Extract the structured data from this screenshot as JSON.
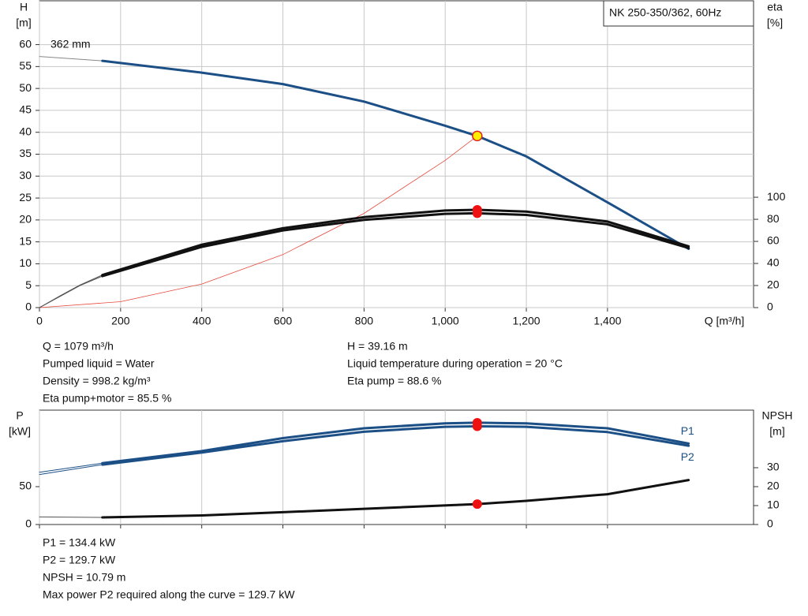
{
  "title": "NK 250-350/362, 60Hz",
  "chart_data": [
    {
      "type": "line",
      "ylabel": "H",
      "yunit": "[m]",
      "y2label": "eta",
      "y2unit": "[%]",
      "xlabel": "Q [m³/h]",
      "xlim": [
        0,
        1760
      ],
      "ylim": [
        0,
        70
      ],
      "y2lim": [
        0,
        278
      ],
      "xticks": [
        0,
        200,
        400,
        600,
        800,
        {
          "value": 1000,
          "label": "1,000"
        },
        {
          "value": 1200,
          "label": "1,200"
        },
        {
          "value": 1400,
          "label": "1,400"
        }
      ],
      "yticks": [
        0,
        5,
        10,
        15,
        20,
        25,
        30,
        35,
        40,
        45,
        50,
        55,
        60
      ],
      "y2ticks": [
        0,
        20,
        40,
        60,
        80,
        100
      ],
      "grid": true,
      "series": [
        {
          "name": "362 mm",
          "color": "#888888",
          "width": 1,
          "x": [
            0,
            155
          ],
          "values": [
            57.3,
            56.3
          ]
        },
        {
          "color": "#1b4f86",
          "width": 3,
          "x": [
            155,
            400,
            600,
            800,
            1000,
            1079,
            1200,
            1400,
            1600
          ],
          "values": [
            56.3,
            53.6,
            51,
            47,
            41.5,
            39.16,
            34.5,
            24,
            13.4
          ]
        },
        {
          "color": "#e8493c",
          "width": 0.8,
          "x": [
            0,
            200,
            400,
            600,
            800,
            1000,
            1079
          ],
          "values": [
            0,
            1.35,
            5.38,
            12.1,
            21.5,
            33.6,
            39.16
          ]
        },
        {
          "color": "#555555",
          "width": 1,
          "axis": "y2",
          "x": [
            0,
            50,
            100,
            155
          ],
          "values": [
            0,
            10.5,
            20.5,
            29.5
          ]
        },
        {
          "color": "#555555",
          "width": 1,
          "axis": "y2",
          "x": [
            0,
            50,
            100,
            155
          ],
          "values": [
            0,
            10,
            20,
            28.5
          ]
        },
        {
          "color": "#111111",
          "width": 3,
          "axis": "y2",
          "x": [
            155,
            400,
            600,
            800,
            1000,
            1079,
            1200,
            1400,
            1600
          ],
          "values": [
            29.5,
            57,
            72,
            82,
            88,
            88.6,
            87,
            78,
            55.5
          ]
        },
        {
          "color": "#111111",
          "width": 3,
          "axis": "y2",
          "x": [
            155,
            400,
            600,
            800,
            1000,
            1079,
            1200,
            1400,
            1600
          ],
          "values": [
            28.5,
            55,
            70,
            79.5,
            85,
            85.5,
            84,
            75.5,
            54
          ]
        }
      ],
      "points": [
        {
          "x": 1079,
          "y": 39.16,
          "color": "#ffee00"
        },
        {
          "x": 1079,
          "y": 88.6,
          "color": "#ee1111",
          "axis": "y2"
        },
        {
          "x": 1079,
          "y": 85.5,
          "color": "#ee1111",
          "axis": "y2"
        }
      ]
    },
    {
      "type": "line",
      "ylabel": "P",
      "yunit": "[kW]",
      "y2label": "NPSH",
      "y2unit": "[m]",
      "xlim": [
        0,
        1760
      ],
      "ylim": [
        0,
        151
      ],
      "y2lim": [
        0,
        60.4
      ],
      "xticks": [
        0,
        200,
        400,
        600,
        800,
        1000,
        1200,
        1400
      ],
      "yticks": [
        0,
        50
      ],
      "y2ticks": [
        0,
        10,
        20,
        30
      ],
      "grid": true,
      "series": [
        {
          "color": "#1b4f86",
          "width": 1,
          "x": [
            0,
            155
          ],
          "values": [
            69,
            81
          ]
        },
        {
          "color": "#1b4f86",
          "width": 1,
          "x": [
            0,
            155
          ],
          "values": [
            66,
            79
          ]
        },
        {
          "name": "P1",
          "color": "#1b4f86",
          "width": 3,
          "x": [
            155,
            400,
            600,
            800,
            1000,
            1079,
            1200,
            1400,
            1600
          ],
          "values": [
            81,
            97,
            114,
            127,
            133.5,
            134.4,
            133.5,
            127,
            107
          ]
        },
        {
          "name": "P2",
          "color": "#1b4f86",
          "width": 3,
          "x": [
            155,
            400,
            600,
            800,
            1000,
            1079,
            1200,
            1400,
            1600
          ],
          "values": [
            79,
            95,
            110,
            122.5,
            129,
            129.7,
            129,
            122,
            104
          ]
        },
        {
          "color": "#555555",
          "width": 1,
          "axis": "y2",
          "x": [
            0,
            155
          ],
          "values": [
            4,
            3.75
          ]
        },
        {
          "color": "#111111",
          "width": 3,
          "axis": "y2",
          "x": [
            155,
            400,
            600,
            800,
            1079,
            1200,
            1400,
            1600
          ],
          "values": [
            3.75,
            4.8,
            6.5,
            8.3,
            10.79,
            12.5,
            16,
            23.5
          ]
        }
      ],
      "points": [
        {
          "x": 1079,
          "y": 134.4,
          "color": "#ee1111"
        },
        {
          "x": 1079,
          "y": 129.7,
          "color": "#ee1111"
        },
        {
          "x": 1079,
          "y": 10.79,
          "color": "#ee1111",
          "axis": "y2"
        }
      ]
    }
  ],
  "readouts_left": [
    "Q = 1079 m³/h",
    "Pumped liquid = Water",
    "Density = 998.2 kg/m³",
    "Eta pump+motor = 85.5 %"
  ],
  "readouts_right": [
    "H = 39.16 m",
    "Liquid temperature during operation = 20 °C",
    "Eta pump = 88.6 %"
  ],
  "readouts_bottom": [
    "P1 = 134.4 kW",
    "P2 = 129.7 kW",
    "NPSH = 10.79 m",
    "Max power P2 required along the curve = 129.7 kW"
  ]
}
